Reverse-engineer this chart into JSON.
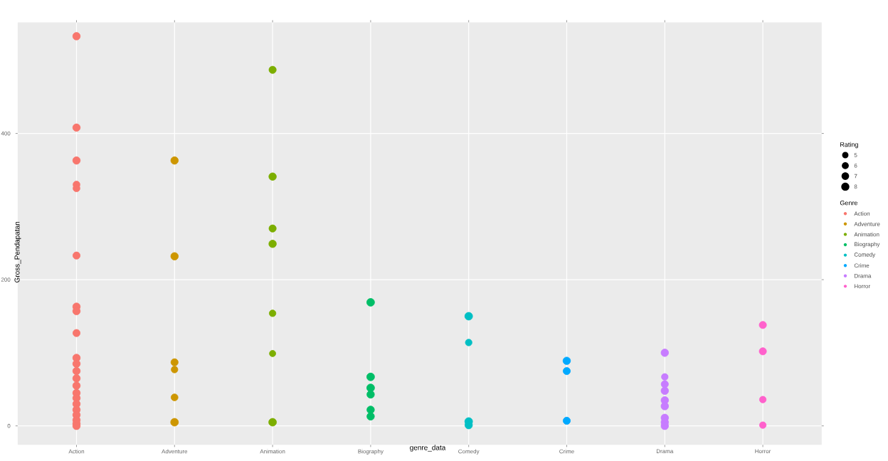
{
  "chart_data": {
    "type": "bubble",
    "xlabel": "genre_data",
    "ylabel": "Gross_Pendapatan",
    "legend_title": "Genre",
    "annotations": [
      "Rating"
    ],
    "categories": [
      "Action",
      "Adventure",
      "Animation",
      "Biography",
      "Comedy",
      "Crime",
      "Drama",
      "Horror"
    ],
    "ylim": [
      -26,
      552
    ],
    "yticks": [
      0,
      200,
      400
    ],
    "grid": true,
    "legend": "right",
    "marker": "circle",
    "size_legend": [
      5,
      6,
      7,
      8
    ],
    "series": [
      {
        "name": "Action",
        "color": "#f8766d",
        "x": [
          "Action",
          "Action",
          "Action",
          "Action",
          "Action",
          "Action",
          "Action",
          "Action",
          "Action",
          "Action",
          "Action",
          "Action",
          "Action",
          "Action",
          "Action",
          "Action",
          "Action",
          "Action",
          "Action",
          "Action",
          "Action",
          "Action"
        ],
        "values": [
          533,
          408,
          363,
          330,
          325,
          233,
          163,
          157,
          127,
          93,
          85,
          75,
          65,
          55,
          45,
          38,
          30,
          22,
          15,
          8,
          3,
          0
        ],
        "sizes": [
          7,
          7,
          7,
          6,
          6,
          6.5,
          7,
          7,
          6.5,
          7,
          7,
          7,
          7,
          7,
          7,
          7,
          7,
          7,
          7,
          7,
          7,
          7
        ]
      },
      {
        "name": "Adventure",
        "color": "#cd9600",
        "x": [
          "Adventure",
          "Adventure",
          "Adventure",
          "Adventure",
          "Adventure",
          "Adventure"
        ],
        "values": [
          363,
          232,
          87,
          77,
          39,
          5
        ],
        "sizes": [
          7,
          7,
          6.5,
          5.5,
          6,
          7.5
        ]
      },
      {
        "name": "Animation",
        "color": "#7cae00",
        "x": [
          "Animation",
          "Animation",
          "Animation",
          "Animation",
          "Animation",
          "Animation",
          "Animation"
        ],
        "values": [
          487,
          341,
          270,
          249,
          154,
          99,
          5
        ],
        "sizes": [
          6.5,
          7,
          6.5,
          7,
          5.5,
          5,
          7.5
        ]
      },
      {
        "name": "Biography",
        "color": "#00be67",
        "x": [
          "Biography",
          "Biography",
          "Biography",
          "Biography",
          "Biography",
          "Biography"
        ],
        "values": [
          169,
          67,
          52,
          43,
          22,
          13
        ],
        "sizes": [
          7.5,
          7.5,
          7.5,
          7,
          7,
          7
        ]
      },
      {
        "name": "Comedy",
        "color": "#00bfc4",
        "x": [
          "Comedy",
          "Comedy",
          "Comedy",
          "Comedy"
        ],
        "values": [
          150,
          114,
          6,
          1
        ],
        "sizes": [
          7.5,
          5.5,
          7.5,
          7
        ]
      },
      {
        "name": "Crime",
        "color": "#00a9ff",
        "x": [
          "Crime",
          "Crime",
          "Crime"
        ],
        "values": [
          89,
          75,
          7
        ],
        "sizes": [
          7,
          6.5,
          6.5
        ]
      },
      {
        "name": "Drama",
        "color": "#c77cff",
        "x": [
          "Drama",
          "Drama",
          "Drama",
          "Drama",
          "Drama",
          "Drama",
          "Drama",
          "Drama",
          "Drama"
        ],
        "values": [
          100,
          67,
          57,
          48,
          35,
          27,
          11,
          5,
          0
        ],
        "sizes": [
          7,
          5.5,
          6.5,
          7,
          7,
          7,
          7,
          7,
          7
        ]
      },
      {
        "name": "Horror",
        "color": "#ff61cc",
        "x": [
          "Horror",
          "Horror",
          "Horror",
          "Horror"
        ],
        "values": [
          138,
          102,
          36,
          1
        ],
        "sizes": [
          6.5,
          6.5,
          5.5,
          5.5
        ]
      }
    ]
  }
}
